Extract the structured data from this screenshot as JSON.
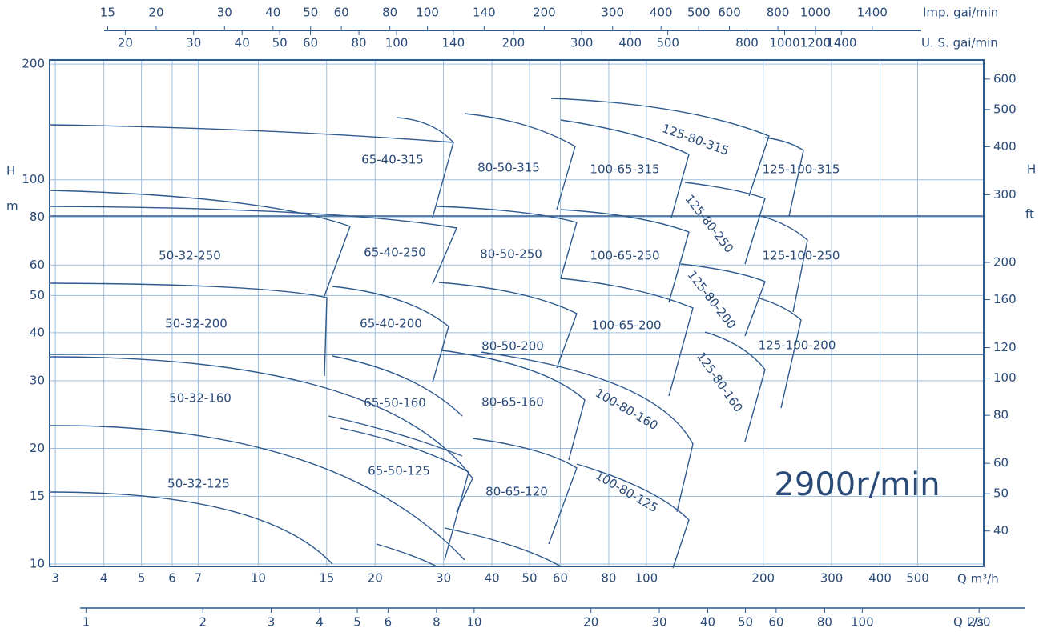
{
  "chart_data": {
    "type": "pump-chart",
    "log": true,
    "speed": "2900r/min",
    "xlabel": "Q m³/h",
    "xlim": [
      2.9,
      740
    ],
    "xticks": [
      3,
      4,
      5,
      6,
      7,
      10,
      15,
      20,
      30,
      40,
      50,
      60,
      80,
      100,
      200,
      300,
      400,
      500
    ],
    "ylabel": "H",
    "yunit": "m",
    "ylim": [
      9.86,
      205
    ],
    "yticks": [
      10,
      15,
      20,
      30,
      40,
      50,
      60,
      80,
      100,
      200
    ],
    "y2label": "H",
    "y2unit": "ft",
    "y2lim": [
      32.35,
      672.6
    ],
    "y2ticks": [
      40,
      50,
      60,
      80,
      100,
      120,
      160,
      200,
      300,
      400,
      500,
      600
    ],
    "imp_axis": {
      "label": "Imp. gai/min",
      "lim": [
        10.63,
        2713
      ],
      "ticks": [
        15,
        20,
        30,
        40,
        50,
        60,
        80,
        100,
        140,
        200,
        300,
        400,
        500,
        600,
        800,
        1000,
        1400
      ]
    },
    "us_axis": {
      "label": "U. S. gai/min",
      "lim": [
        12.77,
        3258
      ],
      "ticks": [
        20,
        30,
        40,
        50,
        60,
        80,
        100,
        140,
        200,
        300,
        400,
        500,
        800,
        1000,
        1200,
        1400
      ]
    },
    "ls_axis": {
      "label": "Q L/s",
      "lim": [
        0.806,
        205.6
      ],
      "ticks": [
        1,
        2,
        3,
        4,
        5,
        6,
        8,
        10,
        20,
        30,
        40,
        50,
        60,
        80,
        100,
        200
      ]
    },
    "grid": true,
    "color": "#2f5a8f",
    "models": [
      "65-40-315",
      "80-50-315",
      "100-65-315",
      "125-80-315",
      "125-100-315",
      "50-32-250",
      "65-40-250",
      "80-50-250",
      "100-65-250",
      "125-80-250",
      "125-100-250",
      "50-32-200",
      "65-40-200",
      "80-50-200",
      "100-65-200",
      "125-80-200",
      "125-100-200",
      "50-32-160",
      "65-50-160",
      "80-65-160",
      "100-80-160",
      "125-80-160",
      "50-32-125",
      "65-50-125",
      "80-65-120",
      "100-80-125"
    ]
  }
}
